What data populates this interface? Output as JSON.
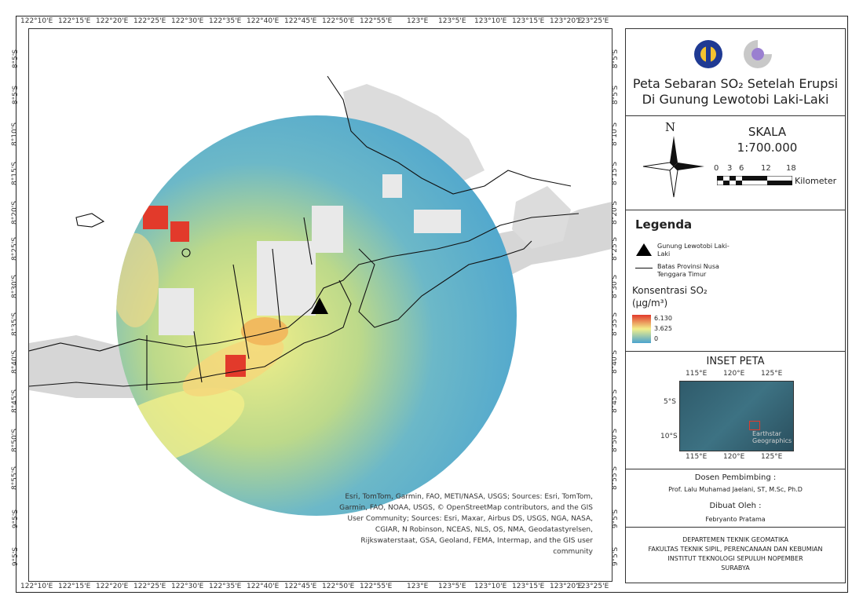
{
  "map": {
    "lon_ticks": [
      "122°10'E",
      "122°15'E",
      "122°20'E",
      "122°25'E",
      "122°30'E",
      "122°35'E",
      "122°40'E",
      "122°45'E",
      "122°50'E",
      "122°55'E",
      "123°E",
      "123°5'E",
      "123°10'E",
      "123°15'E",
      "123°20'E",
      "123°25'E"
    ],
    "lat_ticks": [
      "8°5'S",
      "8°5'S",
      "8°10'S",
      "8°15'S",
      "8°20'S",
      "8°25'S",
      "8°30'S",
      "8°35'S",
      "8°40'S",
      "8°45'S",
      "8°50'S",
      "8°55'S",
      "9°5'S",
      "9°5'S"
    ],
    "attribution": "Esri, TomTom, Garmin, FAO, METI/NASA, USGS; Sources: Esri, TomTom, Garmin, FAO, NOAA, USGS, © OpenStreetMap contributors, and the GIS User Community; Sources: Esri, Maxar, Airbus DS, USGS, NGA, NASA, CGIAR, N Robinson, NCEAS, NLS, OS, NMA, Geodatastyrelsen, Rijkswaterstaat, GSA, Geoland, FEMA, Intermap, and the GIS user community"
  },
  "panel": {
    "title_line1": "Peta Sebaran SO₂ Setelah Erupsi",
    "title_line2": "Di Gunung Lewotobi Laki-Laki",
    "north_label": "N",
    "scale_title": "SKALA",
    "scale_value": "1:700.000",
    "scale_ticks": [
      "0",
      "3",
      "6",
      "12",
      "18"
    ],
    "scale_unit": "Kilometer",
    "legend_title": "Legenda",
    "legend_volcano": "Gunung Lewotobi Laki-Laki",
    "legend_boundary": "Batas Provinsi Nusa Tenggara Timur",
    "legend_so2_title": "Konsentrasi SO₂",
    "legend_so2_unit": "(μg/m³)",
    "legend_so2_values": [
      "6.130",
      "3.625",
      "0"
    ],
    "inset_title": "INSET PETA",
    "inset_top_ticks": [
      "115°E",
      "120°E",
      "125°E"
    ],
    "inset_bottom_ticks": [
      "115°E",
      "120°E",
      "125°E"
    ],
    "inset_lat_ticks": [
      "5°S",
      "10°S"
    ],
    "inset_brand": "Earthstar Geographics",
    "advisor_label": "Dosen Pembimbing :",
    "advisor_name": "Prof. Lalu Muhamad Jaelani, ST, M.Sc, Ph.D",
    "author_label": "Dibuat Oleh :",
    "author_name": "Febryanto Pratama",
    "institution_lines": [
      "DEPARTEMEN TEKNIK GEOMATIKA",
      "FAKULTAS TEKNIK SIPIL, PERENCANAAN DAN KEBUMIAN",
      "INSTITUT TEKNOLOGI SEPULUH NOPEMBER",
      "SURABYA"
    ]
  },
  "colors": {
    "so2_high": "#e23a2b",
    "so2_mid": "#f2ef8a",
    "so2_low": "#4aa3cf",
    "land": "#d9d9d9"
  }
}
